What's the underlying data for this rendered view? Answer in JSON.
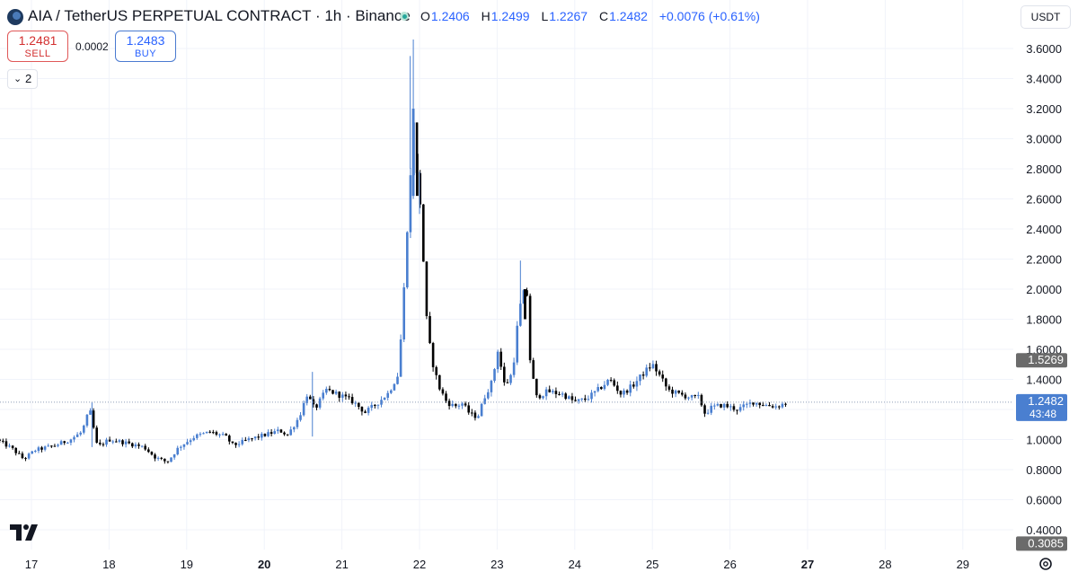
{
  "header": {
    "title": "AIA / TetherUS PERPETUAL CONTRACT · 1h · Binance",
    "ohlc": {
      "o_label": "O",
      "o": "1.2406",
      "h_label": "H",
      "h": "1.2499",
      "l_label": "L",
      "l": "1.2267",
      "c_label": "C",
      "c": "1.2482",
      "change": "+0.0076 (+0.61%)"
    }
  },
  "trade": {
    "sell_price": "1.2481",
    "sell_label": "SELL",
    "spread": "0.0002",
    "buy_price": "1.2483",
    "buy_label": "BUY"
  },
  "indicators_toggle": "2",
  "currency": "USDT",
  "colors": {
    "up": "#4a7fd0",
    "down": "#000000",
    "grid": "#f0f3fa",
    "last_price_tag": "#4a7fd0",
    "gray_tag": "#6b6b6b"
  },
  "chart_data": {
    "type": "candlestick",
    "x_tick_labels": [
      "17",
      "18",
      "19",
      "20",
      "21",
      "22",
      "23",
      "24",
      "25",
      "26",
      "27",
      "28",
      "29"
    ],
    "x_tick_bold": [
      "20",
      "27"
    ],
    "y_tick_labels": [
      "0.4000",
      "0.6000",
      "0.8000",
      "1.0000",
      "1.2000",
      "1.4000",
      "1.6000",
      "1.8000",
      "2.0000",
      "2.2000",
      "2.4000",
      "2.6000",
      "2.8000",
      "3.0000",
      "3.2000",
      "3.4000",
      "3.6000"
    ],
    "ylim": [
      0.3,
      3.68
    ],
    "price_tags": [
      {
        "value": 1.5269,
        "label": "1.5269",
        "style": "gray"
      },
      {
        "value": 1.2482,
        "label": "1.2482",
        "sublabel": "43:48",
        "style": "last"
      },
      {
        "value": 0.3085,
        "label": "0.3085",
        "style": "gray"
      }
    ],
    "last_price": 1.2482,
    "hourly_close_path": [
      [
        16.55,
        1.0
      ],
      [
        16.75,
        0.94
      ],
      [
        16.9,
        0.87
      ],
      [
        17.05,
        0.93
      ],
      [
        17.3,
        0.96
      ],
      [
        17.5,
        1.0
      ],
      [
        17.65,
        1.05
      ],
      [
        17.75,
        1.2
      ],
      [
        17.85,
        0.95
      ],
      [
        18.0,
        1.0
      ],
      [
        18.2,
        0.98
      ],
      [
        18.45,
        0.95
      ],
      [
        18.6,
        0.88
      ],
      [
        18.75,
        0.85
      ],
      [
        18.9,
        0.95
      ],
      [
        19.1,
        1.02
      ],
      [
        19.3,
        1.05
      ],
      [
        19.5,
        1.02
      ],
      [
        19.6,
        0.96
      ],
      [
        19.8,
        1.0
      ],
      [
        20.0,
        1.03
      ],
      [
        20.2,
        1.06
      ],
      [
        20.3,
        1.03
      ],
      [
        20.45,
        1.15
      ],
      [
        20.55,
        1.3
      ],
      [
        20.65,
        1.2
      ],
      [
        20.8,
        1.33
      ],
      [
        21.0,
        1.29
      ],
      [
        21.15,
        1.25
      ],
      [
        21.3,
        1.18
      ],
      [
        21.45,
        1.24
      ],
      [
        21.6,
        1.31
      ],
      [
        21.72,
        1.43
      ],
      [
        21.78,
        1.8
      ],
      [
        21.84,
        2.4
      ],
      [
        21.88,
        2.7
      ],
      [
        21.92,
        3.2
      ],
      [
        21.95,
        2.8
      ],
      [
        22.0,
        2.65
      ],
      [
        22.04,
        2.3
      ],
      [
        22.08,
        1.85
      ],
      [
        22.15,
        1.55
      ],
      [
        22.25,
        1.35
      ],
      [
        22.35,
        1.25
      ],
      [
        22.45,
        1.22
      ],
      [
        22.55,
        1.24
      ],
      [
        22.65,
        1.17
      ],
      [
        22.75,
        1.15
      ],
      [
        22.85,
        1.3
      ],
      [
        22.95,
        1.4
      ],
      [
        23.0,
        1.62
      ],
      [
        23.1,
        1.35
      ],
      [
        23.2,
        1.45
      ],
      [
        23.27,
        1.8
      ],
      [
        23.32,
        1.95
      ],
      [
        23.38,
        2.0
      ],
      [
        23.42,
        1.55
      ],
      [
        23.5,
        1.28
      ],
      [
        23.65,
        1.32
      ],
      [
        23.85,
        1.3
      ],
      [
        24.0,
        1.25
      ],
      [
        24.15,
        1.27
      ],
      [
        24.3,
        1.33
      ],
      [
        24.45,
        1.4
      ],
      [
        24.6,
        1.3
      ],
      [
        24.75,
        1.36
      ],
      [
        24.9,
        1.45
      ],
      [
        25.0,
        1.5
      ],
      [
        25.1,
        1.42
      ],
      [
        25.2,
        1.33
      ],
      [
        25.35,
        1.3
      ],
      [
        25.5,
        1.28
      ],
      [
        25.6,
        1.28
      ],
      [
        25.68,
        1.17
      ],
      [
        25.75,
        1.21
      ],
      [
        25.9,
        1.23
      ],
      [
        26.1,
        1.2
      ],
      [
        26.3,
        1.25
      ],
      [
        26.45,
        1.23
      ],
      [
        26.6,
        1.22
      ],
      [
        26.75,
        1.2482
      ]
    ]
  }
}
